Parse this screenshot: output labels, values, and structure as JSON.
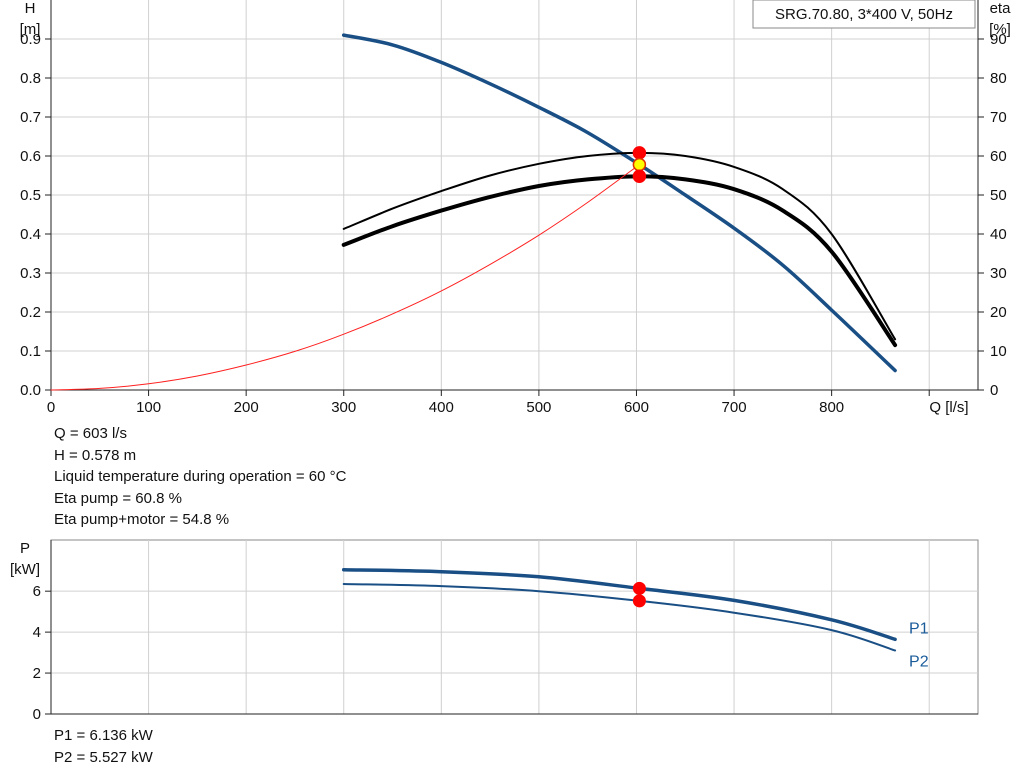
{
  "chart_data": [
    {
      "type": "line",
      "title": "SRG.70.80, 3*400 V, 50Hz",
      "xlabel": "Q [l/s]",
      "y_left": {
        "label_top": "H",
        "label_bottom": "[m]",
        "lim": [
          0,
          1.0
        ],
        "ticks": [
          0.0,
          0.1,
          0.2,
          0.3,
          0.4,
          0.5,
          0.6,
          0.7,
          0.8,
          0.9
        ]
      },
      "y_right": {
        "label_top": "eta",
        "label_bottom": "[%]",
        "lim": [
          0,
          100
        ],
        "ticks": [
          0,
          10,
          20,
          30,
          40,
          50,
          60,
          70,
          80,
          90
        ]
      },
      "xlim": [
        0,
        950
      ],
      "xticks": [
        0,
        100,
        200,
        300,
        400,
        500,
        600,
        700,
        800
      ],
      "grid": true,
      "series": [
        {
          "axis": "left",
          "color": "#1a4f85",
          "x": [
            300,
            350,
            400,
            450,
            500,
            550,
            603,
            650,
            700,
            750,
            800,
            865
          ],
          "y": [
            0.91,
            0.885,
            0.84,
            0.785,
            0.725,
            0.66,
            0.578,
            0.5,
            0.415,
            0.32,
            0.205,
            0.05
          ]
        },
        {
          "axis": "right",
          "color": "#000000",
          "x": [
            300,
            350,
            400,
            450,
            500,
            550,
            603,
            650,
            700,
            750,
            800,
            865
          ],
          "y": [
            41.3,
            46.5,
            51.0,
            55.0,
            58.0,
            60.0,
            60.8,
            60.0,
            57.2,
            51.5,
            40.0,
            13.0
          ]
        },
        {
          "axis": "right",
          "color": "#000000",
          "x": [
            300,
            350,
            400,
            450,
            500,
            550,
            603,
            650,
            700,
            750,
            800,
            865
          ],
          "y": [
            37.2,
            42.0,
            46.0,
            49.5,
            52.3,
            54.0,
            54.8,
            54.0,
            51.5,
            46.0,
            35.5,
            11.5
          ]
        },
        {
          "axis": "left",
          "color": "#ff2020",
          "x": [
            0,
            50,
            100,
            150,
            200,
            250,
            300,
            350,
            400,
            450,
            500,
            550,
            603
          ],
          "y": [
            0.0,
            0.004,
            0.016,
            0.036,
            0.064,
            0.099,
            0.143,
            0.195,
            0.254,
            0.322,
            0.397,
            0.481,
            0.578
          ]
        }
      ],
      "operating_points": [
        {
          "x": 603,
          "value": 60.8,
          "axis": "right",
          "color": "#ff0000"
        },
        {
          "x": 603,
          "value": 0.578,
          "axis": "left",
          "color": "#ffff00"
        },
        {
          "x": 603,
          "value": 54.8,
          "axis": "right",
          "color": "#ff0000"
        }
      ]
    },
    {
      "type": "line",
      "ylabel_top": "P",
      "ylabel_bottom": "[kW]",
      "ylim": [
        0,
        8.5
      ],
      "yticks": [
        0,
        2,
        4,
        6
      ],
      "xlim": [
        0,
        950
      ],
      "grid": true,
      "series": [
        {
          "name": "P1",
          "color": "#1a4f85",
          "x": [
            300,
            400,
            500,
            603,
            700,
            800,
            865
          ],
          "y": [
            7.05,
            6.95,
            6.7,
            6.136,
            5.55,
            4.6,
            3.65
          ]
        },
        {
          "name": "P2",
          "color": "#1a4f85",
          "x": [
            300,
            400,
            500,
            603,
            700,
            800,
            865
          ],
          "y": [
            6.35,
            6.25,
            6.0,
            5.527,
            4.95,
            4.1,
            3.1
          ]
        }
      ],
      "operating_points": [
        {
          "x": 603,
          "value": 6.136,
          "color": "#ff0000"
        },
        {
          "x": 603,
          "value": 5.527,
          "color": "#ff0000"
        }
      ]
    }
  ],
  "info_top": [
    "Q = 603 l/s",
    "H = 0.578 m",
    "Liquid temperature during operation = 60 °C",
    "Eta pump = 60.8 %",
    "Eta pump+motor = 54.8 %"
  ],
  "info_bottom": [
    "P1 = 6.136 kW",
    "P2 = 5.527 kW"
  ]
}
